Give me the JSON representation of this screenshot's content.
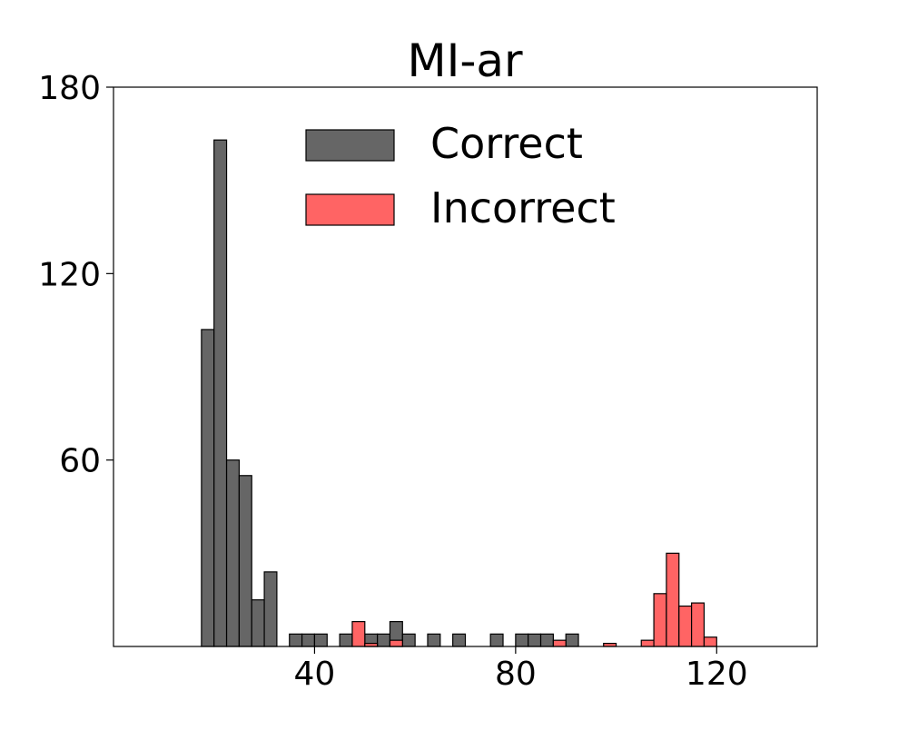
{
  "chart_data": {
    "type": "bar",
    "title": "MI-ar",
    "xlabel": "",
    "ylabel": "",
    "xlim": [
      0,
      140
    ],
    "ylim": [
      0,
      180
    ],
    "xticks": [
      40,
      80,
      120
    ],
    "yticks": [
      60,
      120,
      180
    ],
    "bin_width": 2.5,
    "grid": false,
    "legend_position": "top-center",
    "series": [
      {
        "name": "Correct",
        "color": "#666666",
        "bins": [
          {
            "x": 17.5,
            "y": 102
          },
          {
            "x": 20,
            "y": 163
          },
          {
            "x": 22.5,
            "y": 60
          },
          {
            "x": 25,
            "y": 55
          },
          {
            "x": 27.5,
            "y": 15
          },
          {
            "x": 30,
            "y": 24
          },
          {
            "x": 35,
            "y": 4
          },
          {
            "x": 37.5,
            "y": 4
          },
          {
            "x": 40,
            "y": 4
          },
          {
            "x": 45,
            "y": 4
          },
          {
            "x": 50,
            "y": 4
          },
          {
            "x": 52.5,
            "y": 4
          },
          {
            "x": 55,
            "y": 8
          },
          {
            "x": 57.5,
            "y": 4
          },
          {
            "x": 62.5,
            "y": 4
          },
          {
            "x": 67.5,
            "y": 4
          },
          {
            "x": 75,
            "y": 4
          },
          {
            "x": 80,
            "y": 4
          },
          {
            "x": 82.5,
            "y": 4
          },
          {
            "x": 85,
            "y": 4
          },
          {
            "x": 90,
            "y": 4
          }
        ]
      },
      {
        "name": "Incorrect",
        "color": "#ff6464",
        "bins": [
          {
            "x": 47.5,
            "y": 8
          },
          {
            "x": 50,
            "y": 1
          },
          {
            "x": 55,
            "y": 2
          },
          {
            "x": 87.5,
            "y": 2
          },
          {
            "x": 97.5,
            "y": 1
          },
          {
            "x": 105,
            "y": 2
          },
          {
            "x": 107.5,
            "y": 17
          },
          {
            "x": 110,
            "y": 30
          },
          {
            "x": 112.5,
            "y": 13
          },
          {
            "x": 115,
            "y": 14
          },
          {
            "x": 117.5,
            "y": 3
          }
        ]
      }
    ]
  }
}
